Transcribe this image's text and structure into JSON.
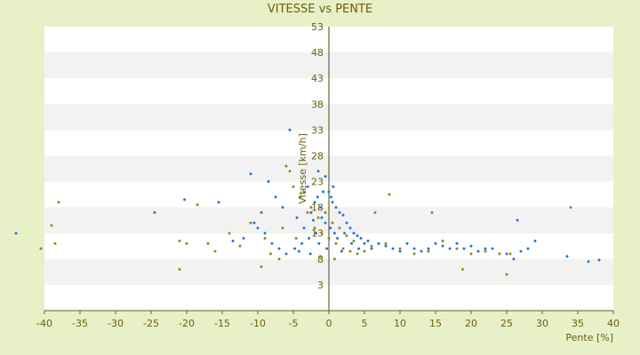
{
  "chart_data": {
    "type": "scatter",
    "title": "VITESSE vs PENTE",
    "xlabel": "Pente [%]",
    "ylabel": "Vitesse [km/h]",
    "xlim": [
      -40,
      40
    ],
    "ylim": [
      -2,
      53
    ],
    "x_ticks": [
      -40,
      -35,
      -30,
      -25,
      -20,
      -15,
      -10,
      -5,
      0,
      5,
      10,
      15,
      20,
      25,
      30,
      35,
      40
    ],
    "y_ticks": [
      3,
      8,
      13,
      18,
      23,
      28,
      33,
      38,
      43,
      48,
      53
    ],
    "y_tick_labels_shown": [
      "3",
      "8",
      "13",
      "18",
      "23",
      "28",
      "33",
      "38",
      "43",
      "48",
      "53"
    ],
    "plot_background_bands": [
      "#ffffff",
      "#f2f2f2"
    ],
    "grid": true,
    "legend": "none",
    "series": [
      {
        "color": "#1f78d8",
        "points": [
          [
            -44,
            13
          ],
          [
            -20.3,
            19.5
          ],
          [
            -24.5,
            17
          ],
          [
            -11,
            24.5
          ],
          [
            -15.5,
            19
          ],
          [
            -8.5,
            23
          ],
          [
            -6.5,
            18
          ],
          [
            -5.5,
            33
          ],
          [
            -7.5,
            20
          ],
          [
            -10,
            14
          ],
          [
            -12,
            12
          ],
          [
            -13.5,
            11.5
          ],
          [
            -9.5,
            17
          ],
          [
            -4.5,
            16
          ],
          [
            -3,
            22
          ],
          [
            -2,
            19
          ],
          [
            -1.5,
            25
          ],
          [
            -0.5,
            24
          ],
          [
            0,
            21
          ],
          [
            0.5,
            19
          ],
          [
            1,
            18
          ],
          [
            1.5,
            17
          ],
          [
            2,
            16.5
          ],
          [
            2.5,
            15
          ],
          [
            3,
            14
          ],
          [
            3.5,
            13
          ],
          [
            4,
            12.5
          ],
          [
            4.5,
            12
          ],
          [
            5,
            11
          ],
          [
            5.5,
            11.5
          ],
          [
            6,
            10
          ],
          [
            7,
            11
          ],
          [
            8,
            10.5
          ],
          [
            9,
            10
          ],
          [
            10,
            9.5
          ],
          [
            11,
            11
          ],
          [
            12,
            10
          ],
          [
            13,
            9.5
          ],
          [
            14,
            10
          ],
          [
            15,
            11
          ],
          [
            16,
            10.5
          ],
          [
            17,
            10
          ],
          [
            18,
            11
          ],
          [
            19,
            10
          ],
          [
            20,
            10.5
          ],
          [
            21,
            9.5
          ],
          [
            22,
            10
          ],
          [
            23,
            10
          ],
          [
            25,
            9
          ],
          [
            26,
            8
          ],
          [
            27,
            9.5
          ],
          [
            28,
            10
          ],
          [
            29,
            11.5
          ],
          [
            33.5,
            8.5
          ],
          [
            36.5,
            7.5
          ],
          [
            38,
            7.8
          ],
          [
            26.5,
            15.5
          ],
          [
            -2.5,
            17
          ],
          [
            -1,
            16
          ],
          [
            -0.5,
            15
          ],
          [
            0.2,
            14
          ],
          [
            0.8,
            13
          ],
          [
            1.2,
            12
          ],
          [
            -1.8,
            13
          ],
          [
            -2.8,
            12
          ],
          [
            -3.8,
            11
          ],
          [
            -4.8,
            10
          ],
          [
            -6,
            9
          ],
          [
            -7,
            10
          ],
          [
            -8,
            11
          ],
          [
            -9,
            13
          ],
          [
            -10.5,
            15
          ],
          [
            -3.5,
            14
          ],
          [
            -2.2,
            15.5
          ],
          [
            -1.2,
            18
          ],
          [
            0.3,
            20
          ],
          [
            0.6,
            22
          ],
          [
            -0.8,
            21
          ],
          [
            -1.6,
            20
          ],
          [
            2.2,
            13
          ],
          [
            3.2,
            11
          ],
          [
            4.2,
            10
          ],
          [
            1.8,
            9.5
          ],
          [
            -0.3,
            10
          ],
          [
            -1.4,
            11
          ],
          [
            -2.6,
            9
          ],
          [
            -4.2,
            9.5
          ]
        ]
      },
      {
        "color": "#8c8c14",
        "points": [
          [
            -40.5,
            10
          ],
          [
            -39,
            14.5
          ],
          [
            -38,
            19
          ],
          [
            -38.5,
            11
          ],
          [
            -21,
            11.5
          ],
          [
            -20,
            11
          ],
          [
            -18.5,
            18.5
          ],
          [
            -21,
            6
          ],
          [
            -17,
            11
          ],
          [
            -14,
            13
          ],
          [
            -11,
            15
          ],
          [
            -9.5,
            6.5
          ],
          [
            -9,
            12
          ],
          [
            -7,
            8
          ],
          [
            -6,
            26
          ],
          [
            -5,
            22
          ],
          [
            -4,
            20
          ],
          [
            -3,
            17
          ],
          [
            -2,
            14
          ],
          [
            -1,
            13
          ],
          [
            0,
            12
          ],
          [
            1,
            11
          ],
          [
            2,
            10
          ],
          [
            3,
            9.5
          ],
          [
            4,
            9
          ],
          [
            5,
            9.5
          ],
          [
            6,
            10.5
          ],
          [
            8,
            11
          ],
          [
            10,
            10
          ],
          [
            12,
            9
          ],
          [
            14,
            9.5
          ],
          [
            14.5,
            17
          ],
          [
            16,
            11.5
          ],
          [
            18,
            10
          ],
          [
            18.8,
            6
          ],
          [
            20,
            9
          ],
          [
            22,
            9.5
          ],
          [
            24,
            9
          ],
          [
            25,
            5
          ],
          [
            25.5,
            9
          ],
          [
            34,
            18
          ],
          [
            8.5,
            20.5
          ],
          [
            6.5,
            17
          ],
          [
            -5.5,
            25
          ],
          [
            -3.5,
            21
          ],
          [
            -2.5,
            18
          ],
          [
            -1.5,
            16
          ],
          [
            -0.5,
            17
          ],
          [
            0.5,
            15
          ],
          [
            1.5,
            14
          ],
          [
            2.5,
            12.5
          ],
          [
            3.5,
            11.5
          ],
          [
            -6.5,
            14
          ],
          [
            -8.2,
            9
          ],
          [
            -12.5,
            10.5
          ],
          [
            -16,
            9.5
          ],
          [
            -1.2,
            8.5
          ],
          [
            0.8,
            8
          ],
          [
            -4.6,
            12
          ]
        ]
      }
    ]
  }
}
